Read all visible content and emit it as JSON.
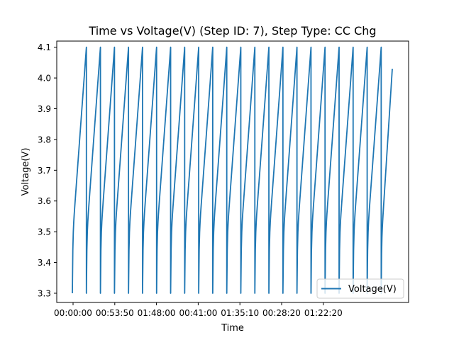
{
  "chart_data": {
    "type": "line",
    "title": "Time vs Voltage(V) (Step ID: 7), Step Type: CC Chg",
    "xlabel": "Time",
    "ylabel": "Voltage(V)",
    "x_tick_labels": [
      "00:00:00",
      "00:53:50",
      "01:48:00",
      "00:41:00",
      "01:35:10",
      "00:28:20",
      "01:22:20"
    ],
    "y_ticks": [
      3.3,
      3.4,
      3.5,
      3.6,
      3.7,
      3.8,
      3.9,
      4.0,
      4.1
    ],
    "ylim": [
      3.27,
      4.12
    ],
    "grid": false,
    "legend_position": "lower-right",
    "series": [
      {
        "name": "Voltage(V)",
        "color": "#1f77b4",
        "cycles": [
          {
            "start_voltage": 3.3,
            "end_voltage": 4.1
          },
          {
            "start_voltage": 3.3,
            "end_voltage": 4.1
          },
          {
            "start_voltage": 3.3,
            "end_voltage": 4.1
          },
          {
            "start_voltage": 3.3,
            "end_voltage": 4.1
          },
          {
            "start_voltage": 3.3,
            "end_voltage": 4.1
          },
          {
            "start_voltage": 3.3,
            "end_voltage": 4.1
          },
          {
            "start_voltage": 3.3,
            "end_voltage": 4.1
          },
          {
            "start_voltage": 3.3,
            "end_voltage": 4.1
          },
          {
            "start_voltage": 3.3,
            "end_voltage": 4.1
          },
          {
            "start_voltage": 3.3,
            "end_voltage": 4.1
          },
          {
            "start_voltage": 3.3,
            "end_voltage": 4.1
          },
          {
            "start_voltage": 3.3,
            "end_voltage": 4.1
          },
          {
            "start_voltage": 3.3,
            "end_voltage": 4.1
          },
          {
            "start_voltage": 3.3,
            "end_voltage": 4.1
          },
          {
            "start_voltage": 3.3,
            "end_voltage": 4.1
          },
          {
            "start_voltage": 3.3,
            "end_voltage": 4.1
          },
          {
            "start_voltage": 3.3,
            "end_voltage": 4.1
          },
          {
            "start_voltage": 3.3,
            "end_voltage": 4.1
          },
          {
            "start_voltage": 3.3,
            "end_voltage": 4.1
          },
          {
            "start_voltage": 3.3,
            "end_voltage": 4.1
          },
          {
            "start_voltage": 3.3,
            "end_voltage": 4.1
          },
          {
            "start_voltage": 3.3,
            "end_voltage": 4.1
          },
          {
            "start_voltage": 3.3,
            "end_voltage": 4.03
          }
        ]
      }
    ]
  }
}
